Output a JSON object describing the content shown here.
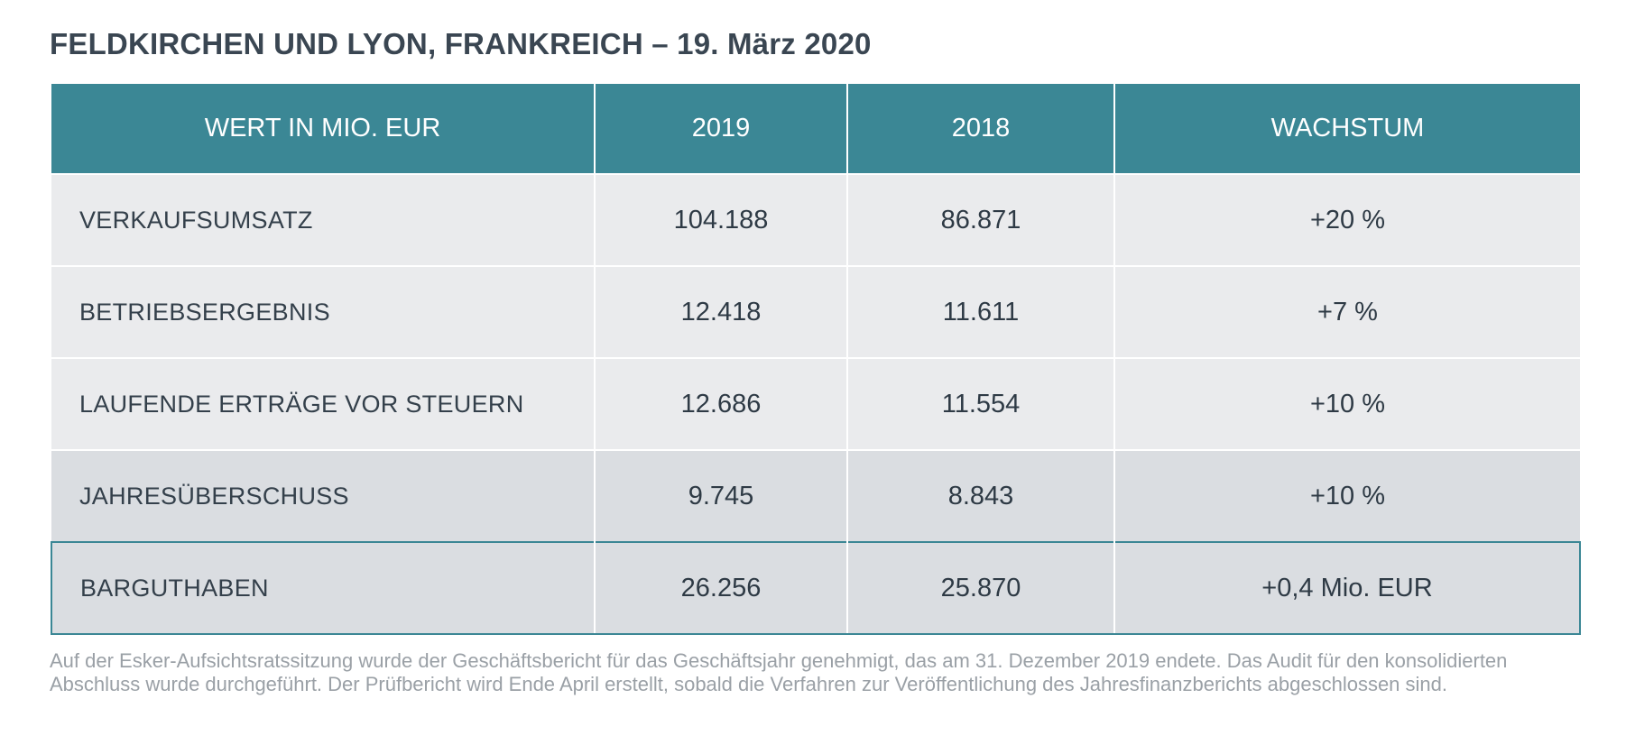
{
  "headline": "FELDKIRCHEN UND LYON, FRANKREICH – 19. März 2020",
  "table": {
    "headers": [
      "WERT IN MIO. EUR",
      "2019",
      "2018",
      "WACHSTUM"
    ],
    "rows": [
      [
        "VERKAUFSUMSATZ",
        "104.188",
        "86.871",
        "+20 %"
      ],
      [
        "BETRIEBSERGEBNIS",
        "12.418",
        "11.611",
        "+7 %"
      ],
      [
        "LAUFENDE ERTRÄGE VOR STEUERN",
        "12.686",
        "11.554",
        "+10 %"
      ],
      [
        "JAHRESÜBERSCHUSS",
        "9.745",
        "8.843",
        "+10 %"
      ],
      [
        "BARGUTHABEN",
        "26.256",
        "25.870",
        "+0,4 Mio. EUR"
      ]
    ]
  },
  "footnote": "Auf der Esker-Aufsichtsratssitzung wurde der Geschäftsbericht für das Geschäftsjahr genehmigt, das am 31. Dezember 2019 endete. Das Audit für den konsolidierten Abschluss wurde durchgeführt. Der Prüfbericht wird Ende April erstellt, sobald die Verfahren zur Veröffentlichung des Jahresfinanzberichts abgeschlossen sind.",
  "colors": {
    "header_bg": "#3b8795",
    "row_light": "#eaebed",
    "row_dark": "#dadde1",
    "highlight_border": "#3b8795"
  }
}
